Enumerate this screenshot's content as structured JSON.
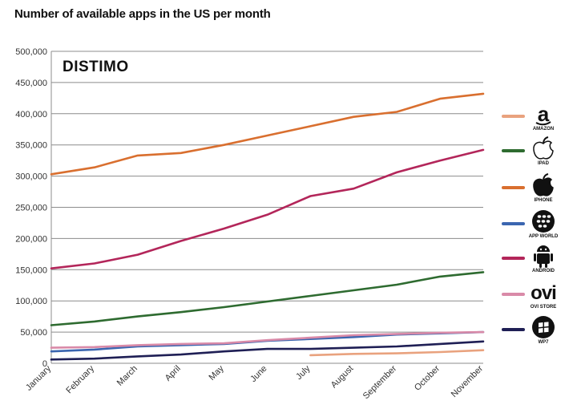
{
  "chart_data": {
    "type": "line",
    "title": "Number of available apps in the US per month",
    "watermark": "DISTIMO",
    "xlabel": "",
    "ylabel": "",
    "categories": [
      "January",
      "February",
      "March",
      "April",
      "May",
      "June",
      "July",
      "August",
      "September",
      "October",
      "November"
    ],
    "y_ticks": [
      "0",
      "50,000",
      "100,000",
      "150,000",
      "200,000",
      "250,000",
      "300,000",
      "350,000",
      "400,000",
      "450,000",
      "500,000"
    ],
    "y_tick_values": [
      0,
      50000,
      100000,
      150000,
      200000,
      250000,
      300000,
      350000,
      400000,
      450000,
      500000
    ],
    "ylim": [
      0,
      500000
    ],
    "grid": "horizontal",
    "legend": "right",
    "series": [
      {
        "name": "AMAZON",
        "icon": "amazon-icon",
        "color": "#e9a27e",
        "values": [
          null,
          null,
          null,
          null,
          null,
          null,
          13000,
          15000,
          16000,
          18000,
          21000
        ]
      },
      {
        "name": "IPAD",
        "icon": "apple-icon",
        "color": "#2e6b30",
        "values": [
          61000,
          67000,
          75000,
          82000,
          90000,
          99000,
          108000,
          117000,
          126000,
          139000,
          146000
        ]
      },
      {
        "name": "IPHONE",
        "icon": "iphone-icon",
        "color": "#d96f2f",
        "values": [
          303000,
          314000,
          333000,
          337000,
          350000,
          365000,
          380000,
          395000,
          403000,
          424000,
          432000
        ]
      },
      {
        "name": "APP WORLD",
        "icon": "blackberry-icon",
        "color": "#3b66b0",
        "values": [
          19000,
          22000,
          27000,
          29000,
          31000,
          36000,
          39000,
          42000,
          46000,
          48000,
          50000
        ]
      },
      {
        "name": "ANDROID",
        "icon": "android-icon",
        "color": "#b3265a",
        "values": [
          152000,
          160000,
          174000,
          196000,
          216000,
          238000,
          268000,
          280000,
          306000,
          325000,
          342000
        ]
      },
      {
        "name": "OVI STORE",
        "icon": "ovi-icon",
        "color": "#d98aa8",
        "values": [
          25000,
          26000,
          29000,
          31000,
          32000,
          37000,
          41000,
          45000,
          47000,
          49000,
          50000
        ]
      },
      {
        "name": "WP7",
        "icon": "windows-icon",
        "color": "#1f1f55",
        "values": [
          6000,
          7500,
          11000,
          14000,
          19000,
          23000,
          23000,
          25000,
          27000,
          31000,
          35000
        ]
      }
    ]
  }
}
